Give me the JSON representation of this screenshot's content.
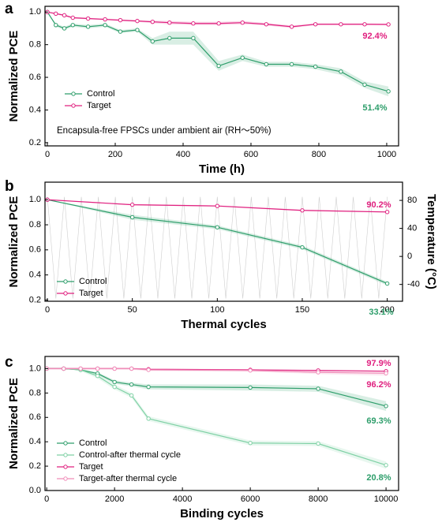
{
  "chart_data": [
    {
      "type": "line",
      "panel_label": "a",
      "x_label": "Time (h)",
      "y_label": "Normalized PCE",
      "xlim": [
        -7,
        1035
      ],
      "xticks": [
        0,
        200,
        400,
        600,
        800,
        1000
      ],
      "ylim": [
        0.18,
        1.035
      ],
      "yticks": [
        0.2,
        0.4,
        0.6,
        0.8,
        {
          "value": 1,
          "label": "1.0"
        }
      ],
      "x": [
        0,
        25,
        50,
        75,
        120,
        170,
        215,
        265,
        310,
        360,
        430,
        505,
        575,
        645,
        720,
        790,
        865,
        935,
        1005
      ],
      "series": [
        {
          "name": "Control",
          "color": "#2e9e6b",
          "values": [
            1.0,
            0.92,
            0.9,
            0.92,
            0.91,
            0.92,
            0.88,
            0.89,
            0.82,
            0.84,
            0.84,
            0.67,
            0.72,
            0.68,
            0.68,
            0.665,
            0.635,
            0.555,
            0.514
          ],
          "errors": [
            0,
            0.01,
            0.01,
            0.01,
            0.01,
            0.01,
            0.01,
            0.01,
            0.02,
            0.04,
            0.04,
            0.03,
            0.02,
            0.015,
            0.015,
            0.015,
            0.02,
            0.02,
            0.03
          ]
        },
        {
          "name": "Target",
          "color": "#e0207f",
          "values": [
            1.0,
            0.99,
            0.98,
            0.965,
            0.96,
            0.955,
            0.95,
            0.945,
            0.94,
            0.935,
            0.93,
            0.93,
            0.935,
            0.925,
            0.91,
            0.925,
            0.925,
            0.925,
            0.924
          ],
          "errors": [
            0,
            0.005,
            0.005,
            0.005,
            0.005,
            0.005,
            0.005,
            0.005,
            0.008,
            0.01,
            0.01,
            0.01,
            0.01,
            0.008,
            0.008,
            0.005,
            0.005,
            0.005,
            0.005
          ]
        }
      ],
      "legend": "center left",
      "annotations": [
        {
          "text": "92.4%",
          "color": "#e0207f"
        },
        {
          "text": "51.4%",
          "color": "#2e9e6b"
        },
        {
          "text": "Encapsula-free FPSCs under ambient air (RH～50%)",
          "color": "#000000"
        }
      ]
    },
    {
      "type": "line",
      "panel_label": "b",
      "x_label": "Thermal cycles",
      "y_label": "Normalized PCE",
      "y2_label": "Temperature (°C)",
      "xlim": [
        -1.4,
        209
      ],
      "xticks": [
        0,
        50,
        100,
        150,
        200
      ],
      "ylim": [
        0.19,
        1.14
      ],
      "yticks": [
        0.2,
        0.4,
        0.6,
        0.8,
        {
          "value": 1,
          "label": "1.0"
        }
      ],
      "y2lim": [
        -64,
        106
      ],
      "y2ticks": [
        -40,
        0,
        40,
        80
      ],
      "x": [
        0,
        50,
        100,
        150,
        200
      ],
      "series": [
        {
          "color": "#cfcfcf",
          "axis": "y2",
          "markers": false,
          "x": [
            0,
            5,
            10,
            15,
            20,
            25,
            30,
            35,
            40,
            45,
            50,
            55,
            60,
            65,
            70,
            75,
            80,
            85,
            90,
            95,
            100,
            105,
            110,
            115,
            120,
            125,
            130,
            135,
            140,
            145,
            150,
            155,
            160,
            165,
            170,
            175,
            180,
            185,
            190,
            195,
            200
          ],
          "values": [
            85,
            -60,
            85,
            -60,
            85,
            -60,
            85,
            -60,
            85,
            -60,
            85,
            -60,
            85,
            -60,
            85,
            -60,
            85,
            -60,
            85,
            -60,
            85,
            -60,
            85,
            -60,
            85,
            -60,
            85,
            -60,
            85,
            -60,
            85,
            -60,
            85,
            -60,
            85,
            -60,
            85,
            -60,
            85,
            -60,
            85
          ]
        },
        {
          "name": "Control",
          "color": "#2e9e6b",
          "values": [
            1.0,
            0.86,
            0.78,
            0.62,
            0.331
          ],
          "errors": [
            0,
            0.02,
            0.015,
            0.015,
            0.015
          ]
        },
        {
          "name": "Target",
          "color": "#e0207f",
          "values": [
            1.0,
            0.96,
            0.95,
            0.915,
            0.902
          ],
          "errors": [
            0,
            0.005,
            0.005,
            0.005,
            0.005
          ]
        }
      ],
      "legend": "lower left",
      "annotations": [
        {
          "text": "90.2%",
          "color": "#e0207f"
        },
        {
          "text": "33.1%",
          "color": "#2e9e6b"
        }
      ]
    },
    {
      "type": "line",
      "panel_label": "c",
      "x_label": "Binding cycles",
      "y_label": "Normalized PCE",
      "xlim": [
        -50,
        10370
      ],
      "xticks": [
        0,
        2000,
        4000,
        6000,
        8000,
        10000
      ],
      "ylim": [
        0,
        1.1
      ],
      "yticks": [
        {
          "value": 0,
          "label": "0.0"
        },
        0.2,
        0.4,
        0.6,
        0.8,
        {
          "value": 1,
          "label": "1.0"
        }
      ],
      "x": [
        0,
        500,
        1000,
        1500,
        2000,
        2500,
        3000,
        6000,
        8000,
        10000
      ],
      "series": [
        {
          "name": "Control",
          "color": "#2e9e6b",
          "values": [
            1.0,
            1.0,
            0.99,
            0.96,
            0.89,
            0.87,
            0.85,
            0.845,
            0.835,
            0.693
          ],
          "errors": [
            0,
            0,
            0.005,
            0.01,
            0.015,
            0.015,
            0.02,
            0.025,
            0.025,
            0.04
          ]
        },
        {
          "name": "Control-after thermal cycle",
          "color": "#7fd1a5",
          "values": [
            1.0,
            1.0,
            0.99,
            0.94,
            0.85,
            0.78,
            0.59,
            0.39,
            0.385,
            0.208
          ],
          "errors": [
            0,
            0,
            0.01,
            0.02,
            0.02,
            0.02,
            0.02,
            0.02,
            0.02,
            0.03
          ]
        },
        {
          "name": "Target",
          "color": "#e0207f",
          "values": [
            1.0,
            1.0,
            1.0,
            1.0,
            1.0,
            1.0,
            0.995,
            0.99,
            0.985,
            0.979
          ],
          "errors": [
            0.005,
            0.005,
            0.005,
            0.005,
            0.005,
            0.005,
            0.005,
            0.005,
            0.005,
            0.005
          ]
        },
        {
          "name": "Target-after thermal cycle",
          "color": "#f08cb8",
          "values": [
            1.0,
            1.0,
            1.0,
            1.0,
            1.0,
            1.0,
            0.99,
            0.985,
            0.97,
            0.962
          ],
          "errors": [
            0.01,
            0.01,
            0.01,
            0.01,
            0.01,
            0.01,
            0.01,
            0.01,
            0.015,
            0.02
          ]
        }
      ],
      "legend": "lower left",
      "annotations": [
        {
          "text": "97.9%",
          "color": "#e0207f"
        },
        {
          "text": "96.2%",
          "color": "#e0207f"
        },
        {
          "text": "69.3%",
          "color": "#2e9e6b"
        },
        {
          "text": "20.8%",
          "color": "#2e9e6b"
        }
      ]
    }
  ]
}
